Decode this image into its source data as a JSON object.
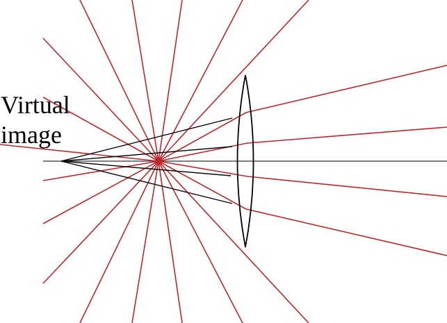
{
  "labels": {
    "line1": "Virtual",
    "line2": "image"
  },
  "colors": {
    "background": "#ffffff",
    "ray": "#c0252a",
    "construction": "#000000",
    "axis": "#333333",
    "lens": "#000000"
  }
}
